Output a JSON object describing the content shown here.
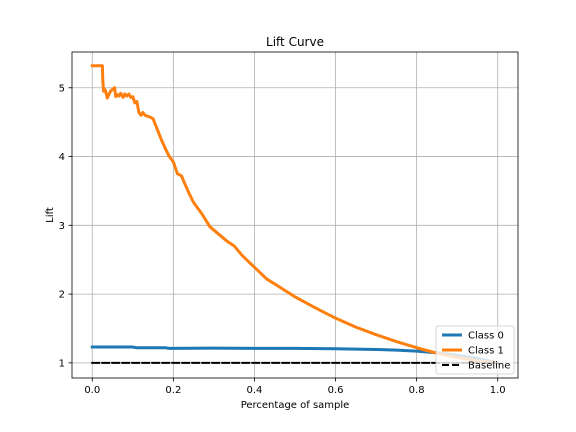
{
  "chart_data": {
    "type": "line",
    "title": "Lift Curve",
    "xlabel": "Percentage of sample",
    "ylabel": "Lift",
    "xlim": [
      -0.05,
      1.05
    ],
    "ylim": [
      0.78,
      5.52
    ],
    "xticks": [
      0.0,
      0.2,
      0.4,
      0.6,
      0.8,
      1.0
    ],
    "xtick_labels": [
      "0.0",
      "0.2",
      "0.4",
      "0.6",
      "0.8",
      "1.0"
    ],
    "yticks": [
      1,
      2,
      3,
      4,
      5
    ],
    "ytick_labels": [
      "1",
      "2",
      "3",
      "4",
      "5"
    ],
    "grid": true,
    "legend": "lower-right",
    "series": [
      {
        "name": "Class 0",
        "color": "#1f77b4",
        "style": "solid",
        "points": [
          [
            0.0,
            1.23
          ],
          [
            0.05,
            1.23
          ],
          [
            0.1,
            1.23
          ],
          [
            0.11,
            1.22
          ],
          [
            0.18,
            1.22
          ],
          [
            0.19,
            1.21
          ],
          [
            0.3,
            1.215
          ],
          [
            0.4,
            1.21
          ],
          [
            0.5,
            1.21
          ],
          [
            0.6,
            1.205
          ],
          [
            0.65,
            1.2
          ],
          [
            0.7,
            1.195
          ],
          [
            0.75,
            1.185
          ],
          [
            0.8,
            1.17
          ],
          [
            0.85,
            1.145
          ],
          [
            0.9,
            1.11
          ],
          [
            0.95,
            1.065
          ],
          [
            1.0,
            1.0
          ]
        ]
      },
      {
        "name": "Class 1",
        "color": "#ff7f0e",
        "style": "solid",
        "points": [
          [
            0.0,
            5.32
          ],
          [
            0.025,
            5.32
          ],
          [
            0.026,
            5.1
          ],
          [
            0.028,
            4.95
          ],
          [
            0.032,
            4.97
          ],
          [
            0.037,
            4.85
          ],
          [
            0.045,
            4.95
          ],
          [
            0.055,
            5.0
          ],
          [
            0.058,
            4.87
          ],
          [
            0.062,
            4.9
          ],
          [
            0.066,
            4.88
          ],
          [
            0.07,
            4.92
          ],
          [
            0.076,
            4.86
          ],
          [
            0.08,
            4.91
          ],
          [
            0.085,
            4.88
          ],
          [
            0.09,
            4.91
          ],
          [
            0.095,
            4.86
          ],
          [
            0.1,
            4.87
          ],
          [
            0.105,
            4.78
          ],
          [
            0.11,
            4.8
          ],
          [
            0.115,
            4.64
          ],
          [
            0.12,
            4.6
          ],
          [
            0.125,
            4.64
          ],
          [
            0.13,
            4.6
          ],
          [
            0.14,
            4.58
          ],
          [
            0.15,
            4.55
          ],
          [
            0.16,
            4.4
          ],
          [
            0.17,
            4.25
          ],
          [
            0.18,
            4.12
          ],
          [
            0.19,
            4.0
          ],
          [
            0.2,
            3.92
          ],
          [
            0.21,
            3.75
          ],
          [
            0.22,
            3.72
          ],
          [
            0.23,
            3.58
          ],
          [
            0.24,
            3.45
          ],
          [
            0.25,
            3.33
          ],
          [
            0.27,
            3.17
          ],
          [
            0.29,
            2.98
          ],
          [
            0.31,
            2.88
          ],
          [
            0.33,
            2.78
          ],
          [
            0.35,
            2.7
          ],
          [
            0.37,
            2.56
          ],
          [
            0.4,
            2.39
          ],
          [
            0.43,
            2.22
          ],
          [
            0.46,
            2.11
          ],
          [
            0.5,
            1.96
          ],
          [
            0.55,
            1.8
          ],
          [
            0.6,
            1.65
          ],
          [
            0.65,
            1.52
          ],
          [
            0.7,
            1.41
          ],
          [
            0.75,
            1.31
          ],
          [
            0.8,
            1.22
          ],
          [
            0.85,
            1.14
          ],
          [
            0.9,
            1.08
          ],
          [
            0.95,
            1.03
          ],
          [
            1.0,
            1.0
          ]
        ]
      },
      {
        "name": "Baseline",
        "color": "#000000",
        "style": "dashed",
        "points": [
          [
            0.0,
            1.0
          ],
          [
            1.0,
            1.0
          ]
        ]
      }
    ]
  }
}
